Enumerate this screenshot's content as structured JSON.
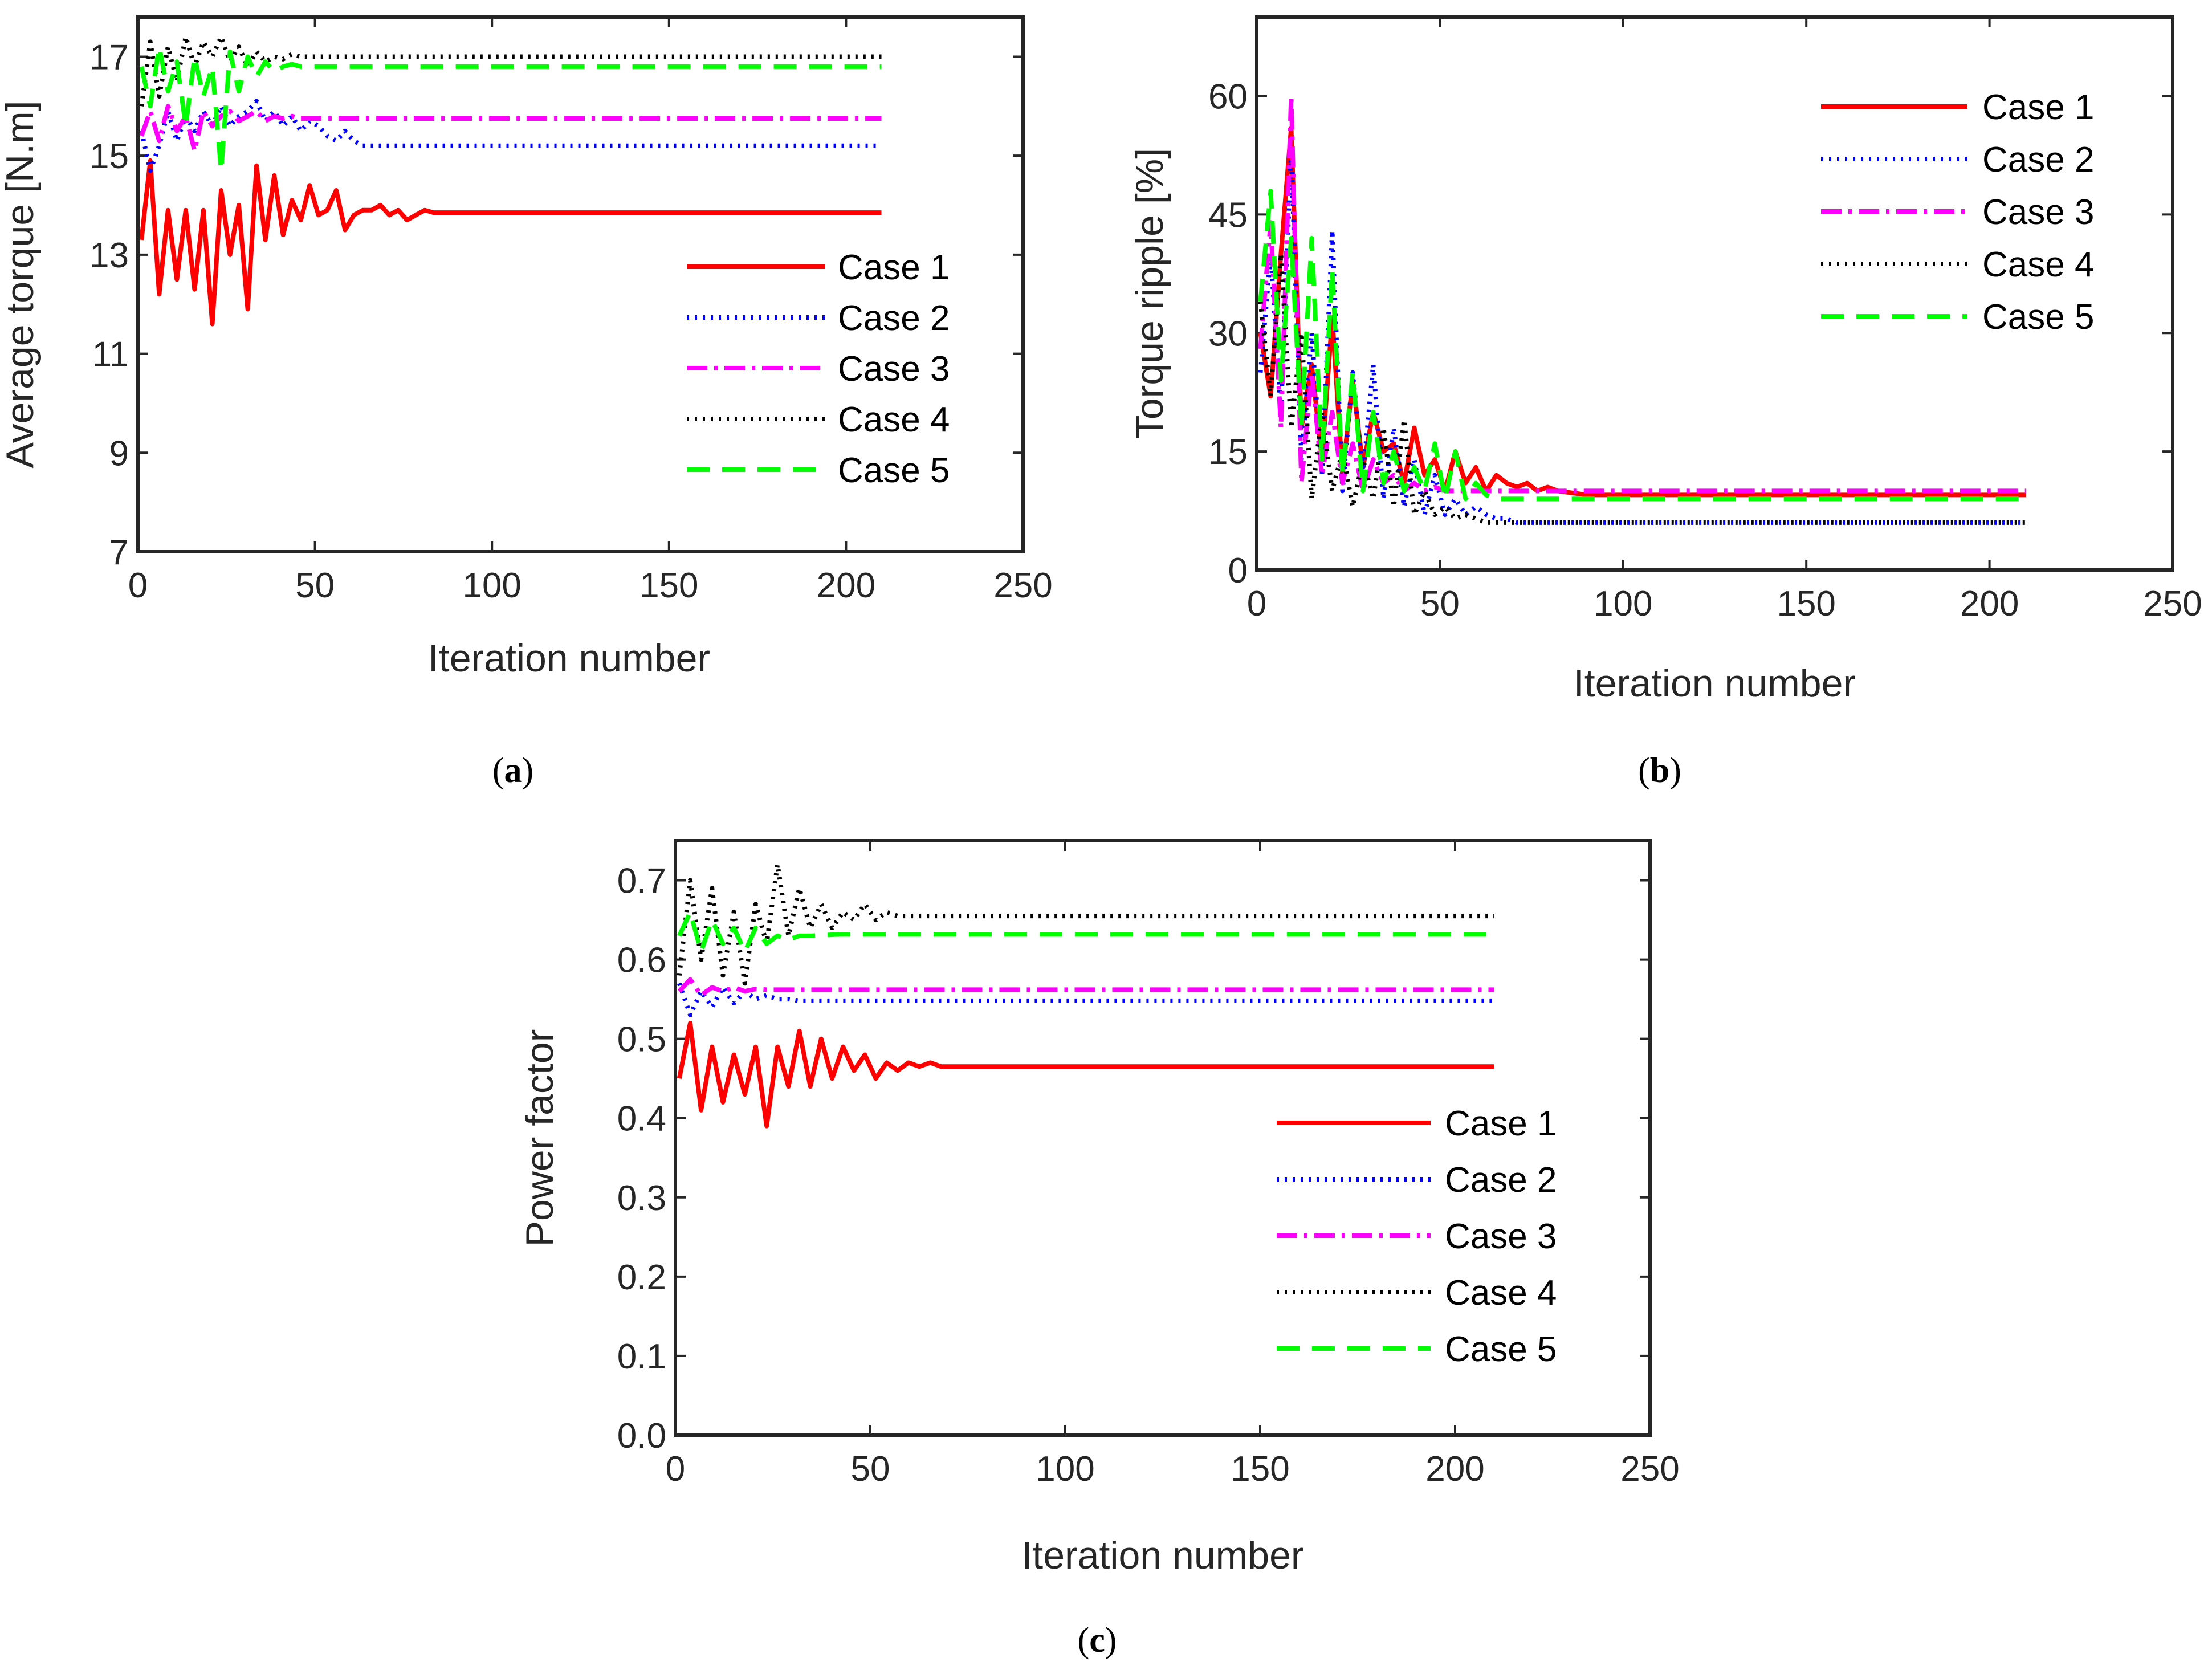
{
  "chart_data": [
    {
      "id": "a",
      "type": "line",
      "caption": "a",
      "xlabel": "Iteration number",
      "ylabel": "Average torque [N.m]",
      "xlim": [
        0,
        250
      ],
      "ylim": [
        7,
        17.8
      ],
      "xticks": [
        0,
        50,
        100,
        150,
        200
      ],
      "xtick_last_label": "250",
      "yticks": [
        7,
        9,
        11,
        13,
        15,
        17
      ],
      "series": [
        {
          "name": "Case 1",
          "color": "#ff0000",
          "dash": "solid",
          "transient": [
            13.3,
            14.9,
            12.2,
            13.9,
            12.5,
            13.9,
            12.3,
            13.9,
            11.6,
            14.3,
            13.0,
            14.0,
            11.9,
            14.8,
            13.3,
            14.6,
            13.4,
            14.1,
            13.7,
            14.4,
            13.8,
            13.9,
            14.3,
            13.5,
            13.8,
            13.9,
            13.9,
            14.0,
            13.8,
            13.9,
            13.7,
            13.8,
            13.9,
            13.85
          ],
          "final": 13.85
        },
        {
          "name": "Case 2",
          "color": "#0000ff",
          "dash": "dot",
          "transient": [
            15.5,
            14.7,
            15.2,
            15.9,
            15.3,
            15.8,
            15.5,
            15.9,
            15.6,
            16.0,
            15.6,
            15.8,
            15.9,
            16.1,
            15.7,
            15.9,
            15.6,
            15.8,
            15.5,
            15.7,
            15.6,
            15.4,
            15.3,
            15.5,
            15.3,
            15.2,
            15.2
          ],
          "final": 15.2
        },
        {
          "name": "Case 3",
          "color": "#ff00ff",
          "dash": "dashdot",
          "transient": [
            15.4,
            15.9,
            15.3,
            16.0,
            15.5,
            15.8,
            15.1,
            15.9,
            15.6,
            15.8,
            15.9,
            15.7,
            15.8,
            15.9,
            15.7,
            15.8,
            15.75,
            15.8,
            15.75
          ],
          "final": 15.75
        },
        {
          "name": "Case 4",
          "color": "#000000",
          "dash": "dot",
          "transient": [
            16.0,
            17.3,
            16.2,
            17.2,
            16.5,
            17.4,
            16.8,
            17.3,
            17.0,
            17.4,
            16.9,
            17.2,
            16.8,
            17.1,
            16.9,
            17.0,
            16.95,
            17.05,
            17.0
          ],
          "final": 17.0
        },
        {
          "name": "Case 5",
          "color": "#00ff00",
          "dash": "dash",
          "transient": [
            16.8,
            16.0,
            17.2,
            16.3,
            16.9,
            15.6,
            17.0,
            16.2,
            16.8,
            14.7,
            17.1,
            16.3,
            17.0,
            16.6,
            16.9,
            16.7,
            16.8,
            16.85,
            16.8
          ],
          "final": 16.8
        }
      ]
    },
    {
      "id": "b",
      "type": "line",
      "caption": "b",
      "xlabel": "Iteration number",
      "ylabel": "Torque ripple [%]",
      "xlim": [
        0,
        250
      ],
      "ylim": [
        0,
        70
      ],
      "xticks": [
        0,
        50,
        100,
        150,
        200,
        250
      ],
      "yticks": [
        0,
        15,
        30,
        45,
        60
      ],
      "series": [
        {
          "name": "Case 1",
          "color": "#ff0000",
          "dash": "solid",
          "transient": [
            30,
            22,
            40,
            56,
            18,
            26,
            14,
            32,
            12,
            24,
            13,
            20,
            15,
            16,
            11,
            18,
            12,
            14,
            10,
            15,
            11,
            13,
            10,
            12,
            11,
            10.5,
            11,
            10,
            10.5,
            10
          ],
          "final": 9.5
        },
        {
          "name": "Case 2",
          "color": "#0000ff",
          "dash": "dot",
          "transient": [
            25,
            40,
            20,
            53,
            14,
            30,
            12,
            43,
            10,
            25,
            12,
            26,
            9,
            18,
            8,
            14,
            7,
            12,
            7,
            9,
            7,
            8,
            7,
            6.5,
            6.5,
            6
          ],
          "final": 6
        },
        {
          "name": "Case 3",
          "color": "#ff00ff",
          "dash": "dashdot",
          "transient": [
            28,
            44,
            18,
            60,
            11,
            25,
            12,
            20,
            11,
            16,
            10,
            14,
            11,
            12,
            10,
            11,
            10,
            10.5,
            10,
            10
          ],
          "final": 10
        },
        {
          "name": "Case 4",
          "color": "#000000",
          "dash": "dot",
          "transient": [
            34,
            22,
            40,
            18,
            30,
            9,
            20,
            10,
            15,
            8,
            14,
            9,
            18,
            8,
            19,
            7,
            10,
            7,
            8,
            6.5,
            7,
            6.5,
            6
          ],
          "final": 6
        },
        {
          "name": "Case 5",
          "color": "#00ff00",
          "dash": "dash",
          "transient": [
            34,
            48,
            24,
            42,
            18,
            42,
            14,
            38,
            12,
            25,
            10,
            20,
            11,
            15,
            10,
            13,
            10,
            16,
            9,
            15,
            9,
            11,
            9.5,
            9
          ],
          "final": 9
        }
      ]
    },
    {
      "id": "c",
      "type": "line",
      "caption": "c",
      "xlabel": "Iteration number",
      "ylabel": "Power factor",
      "xlim": [
        0,
        250
      ],
      "ylim": [
        0,
        0.75
      ],
      "xticks": [
        0,
        50,
        100,
        150,
        200,
        250
      ],
      "yticks": [
        0,
        0.1,
        0.2,
        0.3,
        0.4,
        0.5,
        0.6,
        0.7
      ],
      "series": [
        {
          "name": "Case 1",
          "color": "#ff0000",
          "dash": "solid",
          "transient": [
            0.45,
            0.52,
            0.41,
            0.49,
            0.42,
            0.48,
            0.43,
            0.49,
            0.39,
            0.49,
            0.44,
            0.51,
            0.44,
            0.5,
            0.45,
            0.49,
            0.46,
            0.48,
            0.45,
            0.47,
            0.46,
            0.47,
            0.465,
            0.47,
            0.465,
            0.465
          ],
          "final": 0.465
        },
        {
          "name": "Case 2",
          "color": "#0000ff",
          "dash": "dot",
          "transient": [
            0.57,
            0.53,
            0.56,
            0.54,
            0.565,
            0.545,
            0.56,
            0.55,
            0.555,
            0.55,
            0.55,
            0.548,
            0.548
          ],
          "final": 0.548
        },
        {
          "name": "Case 3",
          "color": "#ff00ff",
          "dash": "dashdot",
          "transient": [
            0.56,
            0.575,
            0.555,
            0.565,
            0.56,
            0.565,
            0.56,
            0.563,
            0.562,
            0.562
          ],
          "final": 0.562
        },
        {
          "name": "Case 4",
          "color": "#000000",
          "dash": "dot",
          "transient": [
            0.58,
            0.7,
            0.6,
            0.69,
            0.58,
            0.66,
            0.57,
            0.67,
            0.62,
            0.72,
            0.63,
            0.69,
            0.64,
            0.67,
            0.64,
            0.66,
            0.65,
            0.67,
            0.65,
            0.66,
            0.655,
            0.655
          ],
          "final": 0.655
        },
        {
          "name": "Case 5",
          "color": "#00ff00",
          "dash": "dash",
          "transient": [
            0.63,
            0.66,
            0.61,
            0.65,
            0.62,
            0.64,
            0.61,
            0.64,
            0.62,
            0.63,
            0.625,
            0.63,
            0.63
          ],
          "final": 0.632
        }
      ]
    }
  ]
}
